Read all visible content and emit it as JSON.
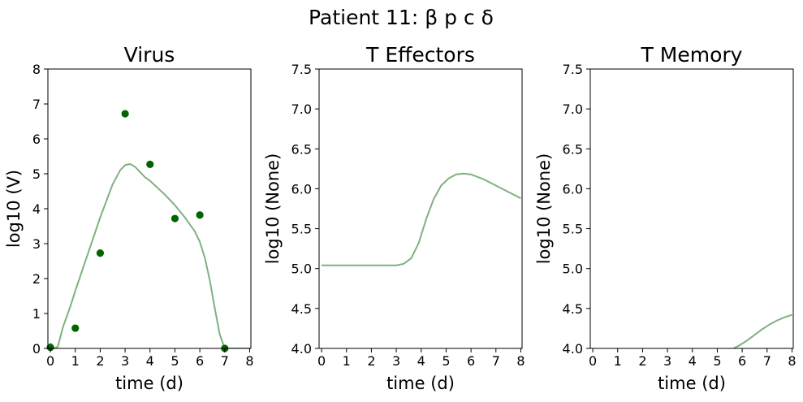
{
  "figure": {
    "suptitle": "Patient 11: β p c δ",
    "fit_color": "#7fb17f",
    "obs_color": "#006400"
  },
  "chart_data": [
    {
      "type": "line",
      "title": "Virus",
      "xlabel": "time (d)",
      "ylabel": "log10 (V)",
      "xlim": [
        -0.1,
        8.05
      ],
      "ylim": [
        0,
        8
      ],
      "xticks": [
        "0",
        "1",
        "2",
        "3",
        "4",
        "5",
        "6",
        "7",
        "8"
      ],
      "yticks": [
        "0",
        "1",
        "2",
        "3",
        "4",
        "5",
        "6",
        "7",
        "8"
      ],
      "grid": false,
      "series": [
        {
          "kind": "line",
          "x": [
            0,
            0.15,
            0.3,
            0.5,
            0.8,
            1.0,
            1.5,
            2.0,
            2.5,
            2.8,
            3.0,
            3.2,
            3.4,
            3.6,
            3.8,
            4.0,
            4.3,
            4.6,
            5.0,
            5.4,
            5.8,
            6.0,
            6.2,
            6.4,
            6.6,
            6.8,
            7.0,
            7.2,
            7.5,
            8.0
          ],
          "y": [
            0.15,
            0.0,
            0.05,
            0.6,
            1.2,
            1.65,
            2.7,
            3.75,
            4.7,
            5.1,
            5.25,
            5.28,
            5.2,
            5.05,
            4.9,
            4.8,
            4.6,
            4.4,
            4.1,
            3.75,
            3.35,
            3.05,
            2.6,
            1.95,
            1.15,
            0.4,
            0.0,
            0.0,
            0.0,
            0.0
          ]
        },
        {
          "kind": "scatter",
          "x": [
            0,
            1,
            2,
            3,
            4,
            5,
            6,
            7
          ],
          "y": [
            0.03,
            0.58,
            2.73,
            6.72,
            5.27,
            3.72,
            3.82,
            0.0
          ]
        }
      ]
    },
    {
      "type": "line",
      "title": "T Effectors",
      "xlabel": "time (d)",
      "ylabel": "log10 (None)",
      "xlim": [
        -0.1,
        8.05
      ],
      "ylim": [
        4.0,
        7.5
      ],
      "xticks": [
        "0",
        "1",
        "2",
        "3",
        "4",
        "5",
        "6",
        "7",
        "8"
      ],
      "yticks": [
        "4.0",
        "4.5",
        "5.0",
        "5.5",
        "6.0",
        "6.5",
        "7.0",
        "7.5"
      ],
      "grid": false,
      "series": [
        {
          "kind": "line",
          "x": [
            0,
            1,
            2,
            3.0,
            3.3,
            3.6,
            3.9,
            4.2,
            4.5,
            4.8,
            5.1,
            5.4,
            5.7,
            6.0,
            6.5,
            7.0,
            7.5,
            8.0
          ],
          "y": [
            5.04,
            5.04,
            5.04,
            5.04,
            5.06,
            5.13,
            5.32,
            5.62,
            5.87,
            6.04,
            6.13,
            6.18,
            6.19,
            6.18,
            6.12,
            6.04,
            5.96,
            5.88
          ]
        }
      ]
    },
    {
      "type": "line",
      "title": "T Memory",
      "xlabel": "time (d)",
      "ylabel": "log10 (None)",
      "xlim": [
        -0.1,
        8.05
      ],
      "ylim": [
        4.0,
        7.5
      ],
      "xticks": [
        "0",
        "1",
        "2",
        "3",
        "4",
        "5",
        "6",
        "7",
        "8"
      ],
      "yticks": [
        "4.0",
        "4.5",
        "5.0",
        "5.5",
        "6.0",
        "6.5",
        "7.0",
        "7.5"
      ],
      "grid": false,
      "series": [
        {
          "kind": "line",
          "x": [
            5.65,
            5.9,
            6.2,
            6.5,
            6.8,
            7.1,
            7.4,
            7.7,
            8.0
          ],
          "y": [
            4.0,
            4.04,
            4.1,
            4.17,
            4.24,
            4.3,
            4.35,
            4.39,
            4.42
          ]
        }
      ]
    }
  ]
}
